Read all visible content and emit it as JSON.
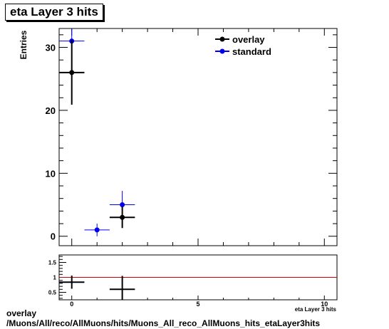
{
  "title": "eta Layer 3 hits",
  "footer": {
    "line1": "overlay",
    "line2": "/Muons/All/reco/AllMuons/hits/Muons_All_reco_AllMuons_hits_etaLayer3hits"
  },
  "chart_data": [
    {
      "type": "scatter",
      "panel": "main",
      "ylabel": "Entries",
      "xlabel": "eta Layer 3 hits",
      "xlim": [
        -0.5,
        10.5
      ],
      "ylim": [
        -1.5,
        33
      ],
      "x_ticks": [
        0,
        5,
        10
      ],
      "y_ticks": [
        0,
        10,
        20,
        30
      ],
      "legend": {
        "placement": "top-right",
        "entries": [
          "overlay",
          "standard"
        ]
      },
      "series": [
        {
          "name": "overlay",
          "color": "#000000",
          "points": [
            {
              "x": 0,
              "xerr": 0.5,
              "y": 26,
              "yerr": 5.1
            },
            {
              "x": 2,
              "xerr": 0.5,
              "y": 3,
              "yerr": 1.7
            }
          ]
        },
        {
          "name": "standard",
          "color": "#0000ee",
          "points": [
            {
              "x": 0,
              "xerr": 0.5,
              "y": 31,
              "yerr": 5.6
            },
            {
              "x": 1,
              "xerr": 0.5,
              "y": 1,
              "yerr": 1
            },
            {
              "x": 2,
              "xerr": 0.5,
              "y": 5,
              "yerr": 2.2
            }
          ]
        }
      ]
    },
    {
      "type": "scatter",
      "panel": "ratio",
      "xlabel": "eta Layer 3 hits",
      "xlim": [
        -0.5,
        10.5
      ],
      "ylim": [
        0.25,
        1.75
      ],
      "x_ticks": [
        0,
        5,
        10
      ],
      "y_ticks": [
        0.5,
        1,
        1.5
      ],
      "reference_line": {
        "y": 1,
        "color": "#cc0000"
      },
      "series": [
        {
          "name": "overlay",
          "color": "#000000",
          "points": [
            {
              "x": 0,
              "xerr": 0.5,
              "y": 0.84,
              "yerr": 0.22
            },
            {
              "x": 2,
              "xerr": 0.5,
              "y": 0.6,
              "yerr": 0.45
            }
          ]
        }
      ]
    }
  ]
}
